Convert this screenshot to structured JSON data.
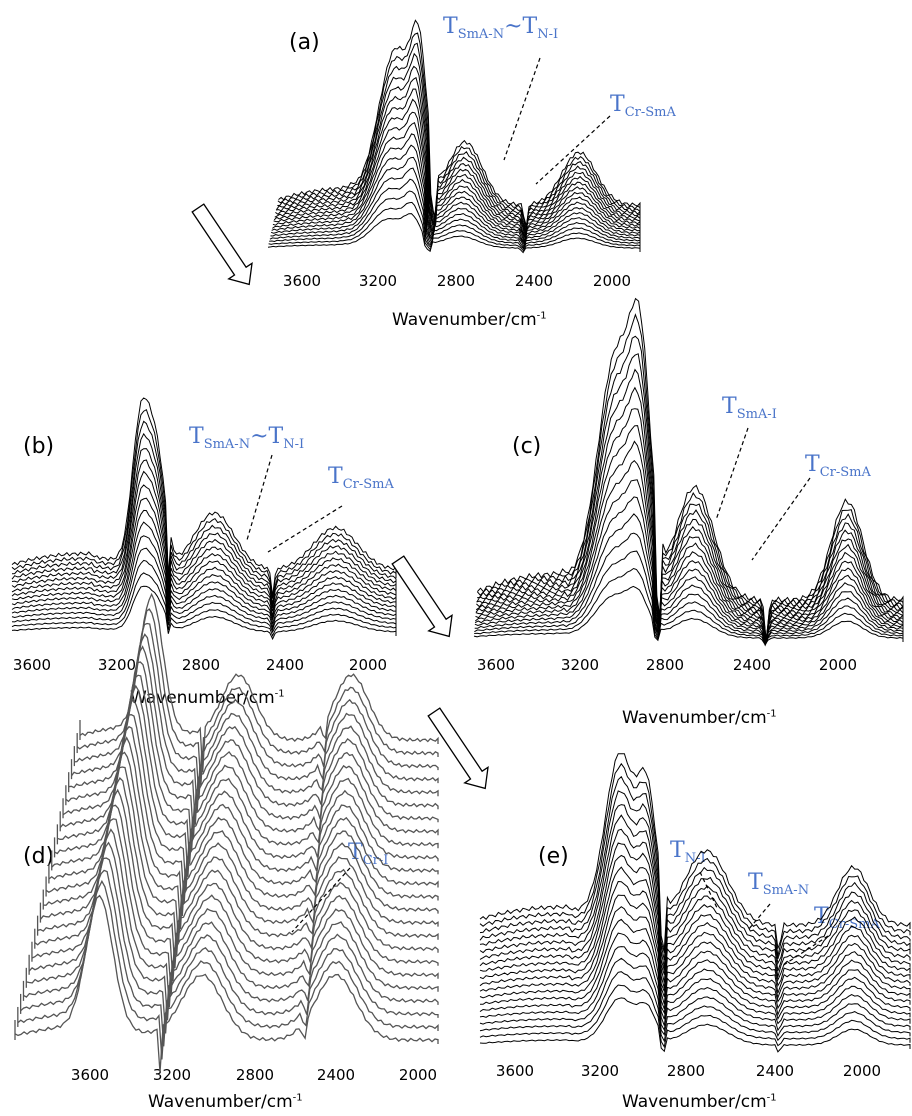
{
  "chart_data": [
    {
      "type": "line",
      "panel": "(a)",
      "xlabel_main": "Wavenumber/cm",
      "xlabel_sup": "-1",
      "xticks": [
        3600,
        3200,
        2800,
        2400,
        2000
      ],
      "annotations": [
        {
          "main": "T",
          "sub": "SmA-N",
          "tilde": "~",
          "main2": "T",
          "sub2": "N-I"
        },
        {
          "main": "T",
          "sub": "Cr-SmA"
        }
      ]
    },
    {
      "type": "line",
      "panel": "(b)",
      "xlabel_main": "Wavenumber/cm",
      "xlabel_sup": "-1",
      "xticks": [
        3600,
        3200,
        2800,
        2400,
        2000
      ],
      "annotations": [
        {
          "main": "T",
          "sub": "SmA-N",
          "tilde": "~",
          "main2": "T",
          "sub2": "N-I"
        },
        {
          "main": "T",
          "sub": "Cr-SmA"
        }
      ]
    },
    {
      "type": "line",
      "panel": "(c)",
      "xlabel_main": "Wavenumber/cm",
      "xlabel_sup": "-1",
      "xticks": [
        3600,
        3200,
        2800,
        2400,
        2000
      ],
      "annotations": [
        {
          "main": "T",
          "sub": "SmA-I"
        },
        {
          "main": "T",
          "sub": "Cr-SmA"
        }
      ]
    },
    {
      "type": "line",
      "panel": "(d)",
      "xlabel_main": "Wavenumber/cm",
      "xlabel_sup": "-1",
      "xticks": [
        3600,
        3200,
        2800,
        2400,
        2000
      ],
      "annotations": [
        {
          "main": "T",
          "sub": "Cr-I"
        }
      ]
    },
    {
      "type": "line",
      "panel": "(e)",
      "xlabel_main": "Wavenumber/cm",
      "xlabel_sup": "-1",
      "xticks": [
        3600,
        3200,
        2800,
        2400,
        2000
      ],
      "annotations": [
        {
          "main": "T",
          "sub": "N-I"
        },
        {
          "main": "T",
          "sub": "SmA-N"
        },
        {
          "main": "T",
          "sub": "Cr-SmA"
        }
      ]
    }
  ],
  "colors": {
    "annotation": "#4a74c9",
    "trace": "#000000",
    "trace_gray": "#555555"
  },
  "icons": [
    "arrow-icon"
  ]
}
